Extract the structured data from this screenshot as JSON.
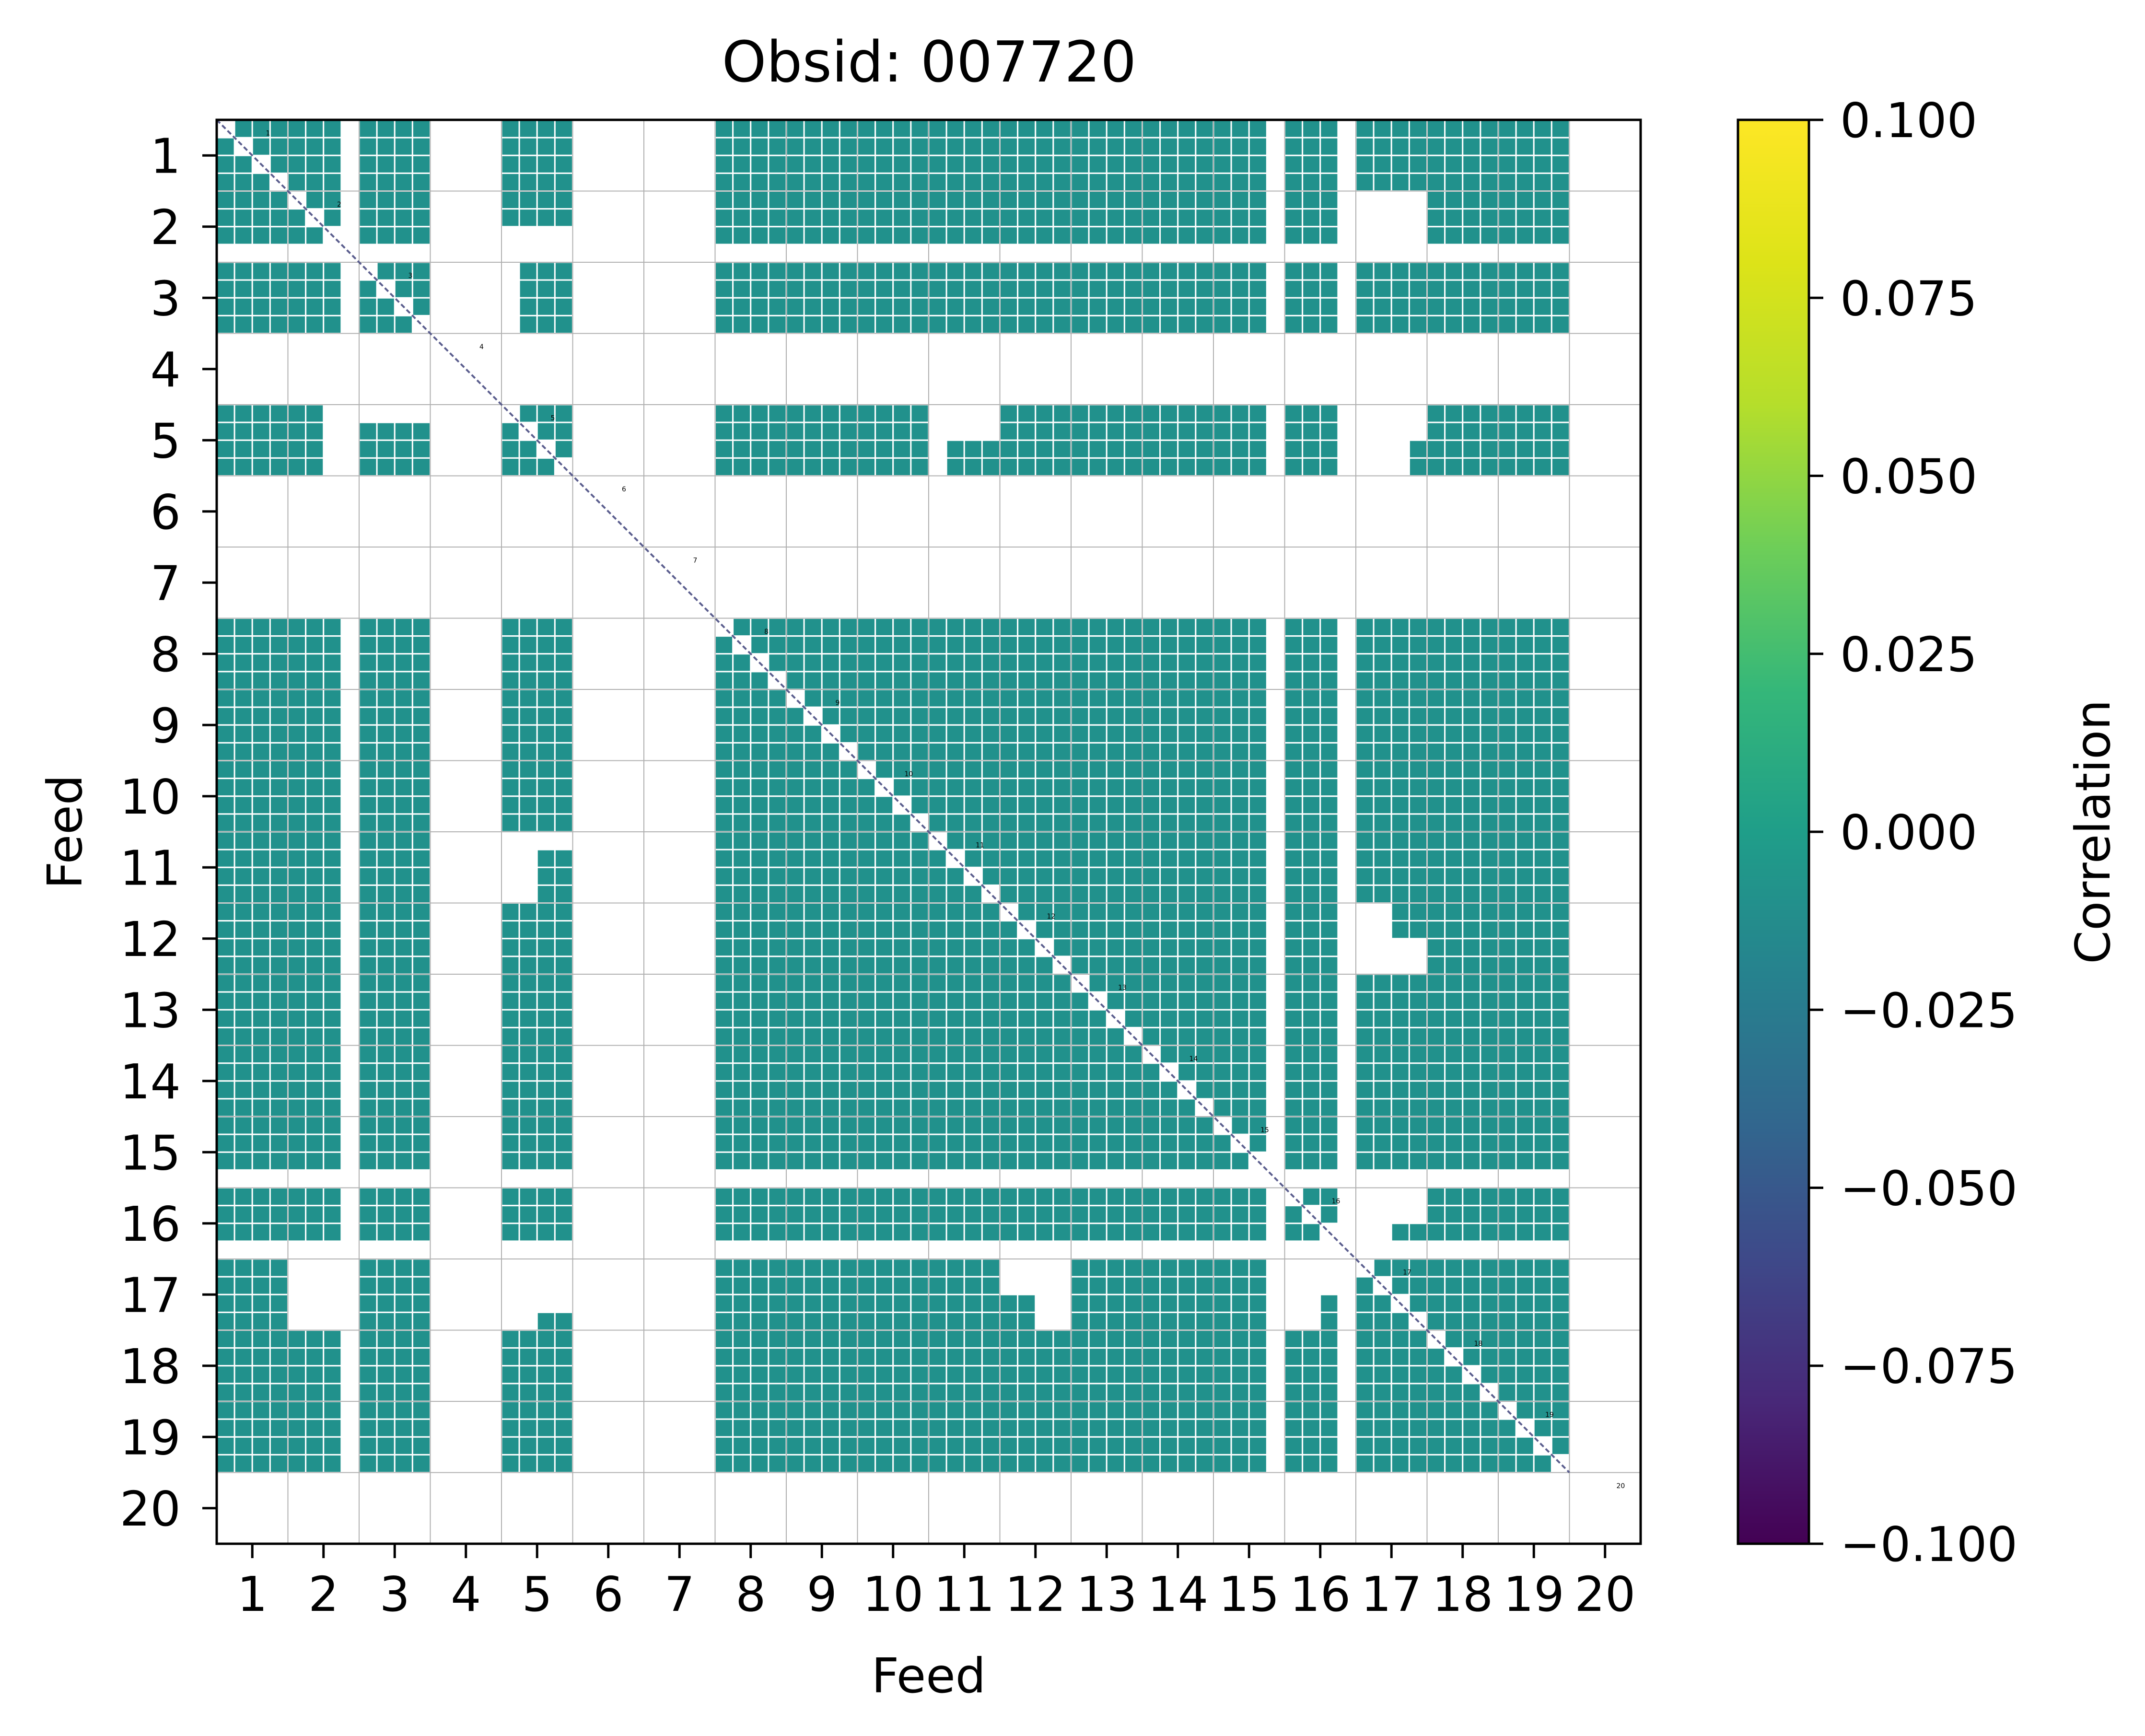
{
  "chart_data": {
    "type": "heatmap",
    "title": "Obsid: 007720",
    "xlabel": "Feed",
    "ylabel": "Feed",
    "x_tick_labels": [
      "1",
      "2",
      "3",
      "4",
      "5",
      "6",
      "7",
      "8",
      "9",
      "10",
      "11",
      "12",
      "13",
      "14",
      "15",
      "16",
      "17",
      "18",
      "19",
      "20"
    ],
    "y_tick_labels": [
      "1",
      "2",
      "3",
      "4",
      "5",
      "6",
      "7",
      "8",
      "9",
      "10",
      "11",
      "12",
      "13",
      "14",
      "15",
      "16",
      "17",
      "18",
      "19",
      "20"
    ],
    "feeds": [
      1,
      2,
      3,
      4,
      5,
      6,
      7,
      8,
      9,
      10,
      11,
      12,
      13,
      14,
      15,
      16,
      17,
      18,
      19,
      20
    ],
    "feeds_without_data": [
      4,
      6,
      7,
      20
    ],
    "subblocks_per_feed": 4,
    "cell_value": 0.0,
    "partially_masked_feeds": [
      2,
      15,
      16
    ],
    "masked_subblocks": [
      [
        2,
        17,
        1
      ],
      [
        2,
        17,
        2
      ],
      [
        3,
        5,
        1
      ],
      [
        5,
        2,
        3
      ],
      [
        5,
        11,
        1
      ],
      [
        5,
        17,
        1
      ],
      [
        5,
        17,
        2
      ],
      [
        5,
        17,
        3
      ],
      [
        11,
        5,
        1
      ],
      [
        11,
        5,
        2
      ],
      [
        12,
        17,
        1
      ],
      [
        12,
        17,
        2
      ],
      [
        16,
        17,
        1
      ],
      [
        16,
        17,
        2
      ],
      [
        17,
        2,
        1
      ],
      [
        17,
        2,
        2
      ],
      [
        17,
        2,
        3
      ],
      [
        17,
        5,
        1
      ],
      [
        17,
        5,
        2
      ],
      [
        17,
        12,
        3
      ],
      [
        17,
        12,
        4
      ],
      [
        17,
        16,
        1
      ],
      [
        17,
        16,
        2
      ]
    ],
    "diagonal_labels": [
      "1",
      "2",
      "3",
      "4",
      "5",
      "6",
      "7",
      "8",
      "9",
      "10",
      "11",
      "12",
      "13",
      "14",
      "15",
      "16",
      "17",
      "18",
      "19",
      "20"
    ],
    "colorbar": {
      "label": "Correlation",
      "vmin": -0.1,
      "vmax": 0.1,
      "colormap": "viridis",
      "tick_values": [
        0.1,
        0.075,
        0.05,
        0.025,
        0.0,
        -0.025,
        -0.05,
        -0.075,
        -0.1
      ],
      "tick_labels": [
        "0.100",
        "0.075",
        "0.050",
        "0.025",
        "0.000",
        "−0.025",
        "−0.050",
        "−0.075",
        "−0.100"
      ]
    },
    "grid": true
  },
  "colors": {
    "cell": "#21918c",
    "cell_separator": "#ffffff",
    "grid_line": "#b0b0b0",
    "diagonal_line": "#5b5e8e",
    "frame": "#000000",
    "background": "#ffffff"
  }
}
